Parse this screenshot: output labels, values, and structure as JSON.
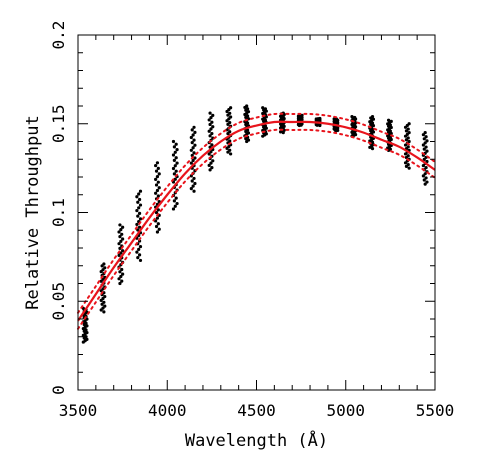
{
  "chart_data": {
    "type": "scatter",
    "xlabel": "Wavelength (Å)",
    "ylabel": "Relative Throughput",
    "xlim": [
      3500,
      5500
    ],
    "ylim": [
      0,
      0.2
    ],
    "xticks": [
      "3500",
      "4000",
      "4500",
      "5000",
      "5500"
    ],
    "yticks": [
      "0",
      "0.05",
      "0.1",
      "0.15",
      "0.2"
    ],
    "grid": false,
    "scatter_columns": [
      {
        "x": 3540,
        "y_min": 0.027,
        "y_max": 0.046
      },
      {
        "x": 3640,
        "y_min": 0.044,
        "y_max": 0.071
      },
      {
        "x": 3740,
        "y_min": 0.06,
        "y_max": 0.093
      },
      {
        "x": 3840,
        "y_min": 0.073,
        "y_max": 0.112
      },
      {
        "x": 3945,
        "y_min": 0.089,
        "y_max": 0.128
      },
      {
        "x": 4045,
        "y_min": 0.102,
        "y_max": 0.14
      },
      {
        "x": 4145,
        "y_min": 0.112,
        "y_max": 0.148
      },
      {
        "x": 4245,
        "y_min": 0.124,
        "y_max": 0.156
      },
      {
        "x": 4345,
        "y_min": 0.133,
        "y_max": 0.159
      },
      {
        "x": 4445,
        "y_min": 0.14,
        "y_max": 0.16
      },
      {
        "x": 4545,
        "y_min": 0.143,
        "y_max": 0.159
      },
      {
        "x": 4645,
        "y_min": 0.145,
        "y_max": 0.156
      },
      {
        "x": 4745,
        "y_min": 0.149,
        "y_max": 0.155
      },
      {
        "x": 4845,
        "y_min": 0.149,
        "y_max": 0.153
      },
      {
        "x": 4945,
        "y_min": 0.146,
        "y_max": 0.153
      },
      {
        "x": 5045,
        "y_min": 0.143,
        "y_max": 0.154
      },
      {
        "x": 5145,
        "y_min": 0.136,
        "y_max": 0.154
      },
      {
        "x": 5245,
        "y_min": 0.135,
        "y_max": 0.152
      },
      {
        "x": 5345,
        "y_min": 0.125,
        "y_max": 0.15
      },
      {
        "x": 5445,
        "y_min": 0.116,
        "y_max": 0.145
      }
    ],
    "fit_curve": {
      "x": [
        3500,
        3600,
        3700,
        3800,
        3900,
        4000,
        4100,
        4200,
        4300,
        4400,
        4500,
        4600,
        4700,
        4800,
        4900,
        5000,
        5100,
        5200,
        5300,
        5400,
        5500
      ],
      "y": [
        0.039,
        0.054,
        0.069,
        0.083,
        0.097,
        0.11,
        0.122,
        0.132,
        0.14,
        0.146,
        0.149,
        0.151,
        0.151,
        0.151,
        0.15,
        0.148,
        0.145,
        0.141,
        0.137,
        0.131,
        0.124
      ]
    },
    "band_offset": 0.0045,
    "colors": {
      "points": "#000000",
      "fit": "#e8141c",
      "band": "#e8141c",
      "axes": "#000000"
    }
  }
}
